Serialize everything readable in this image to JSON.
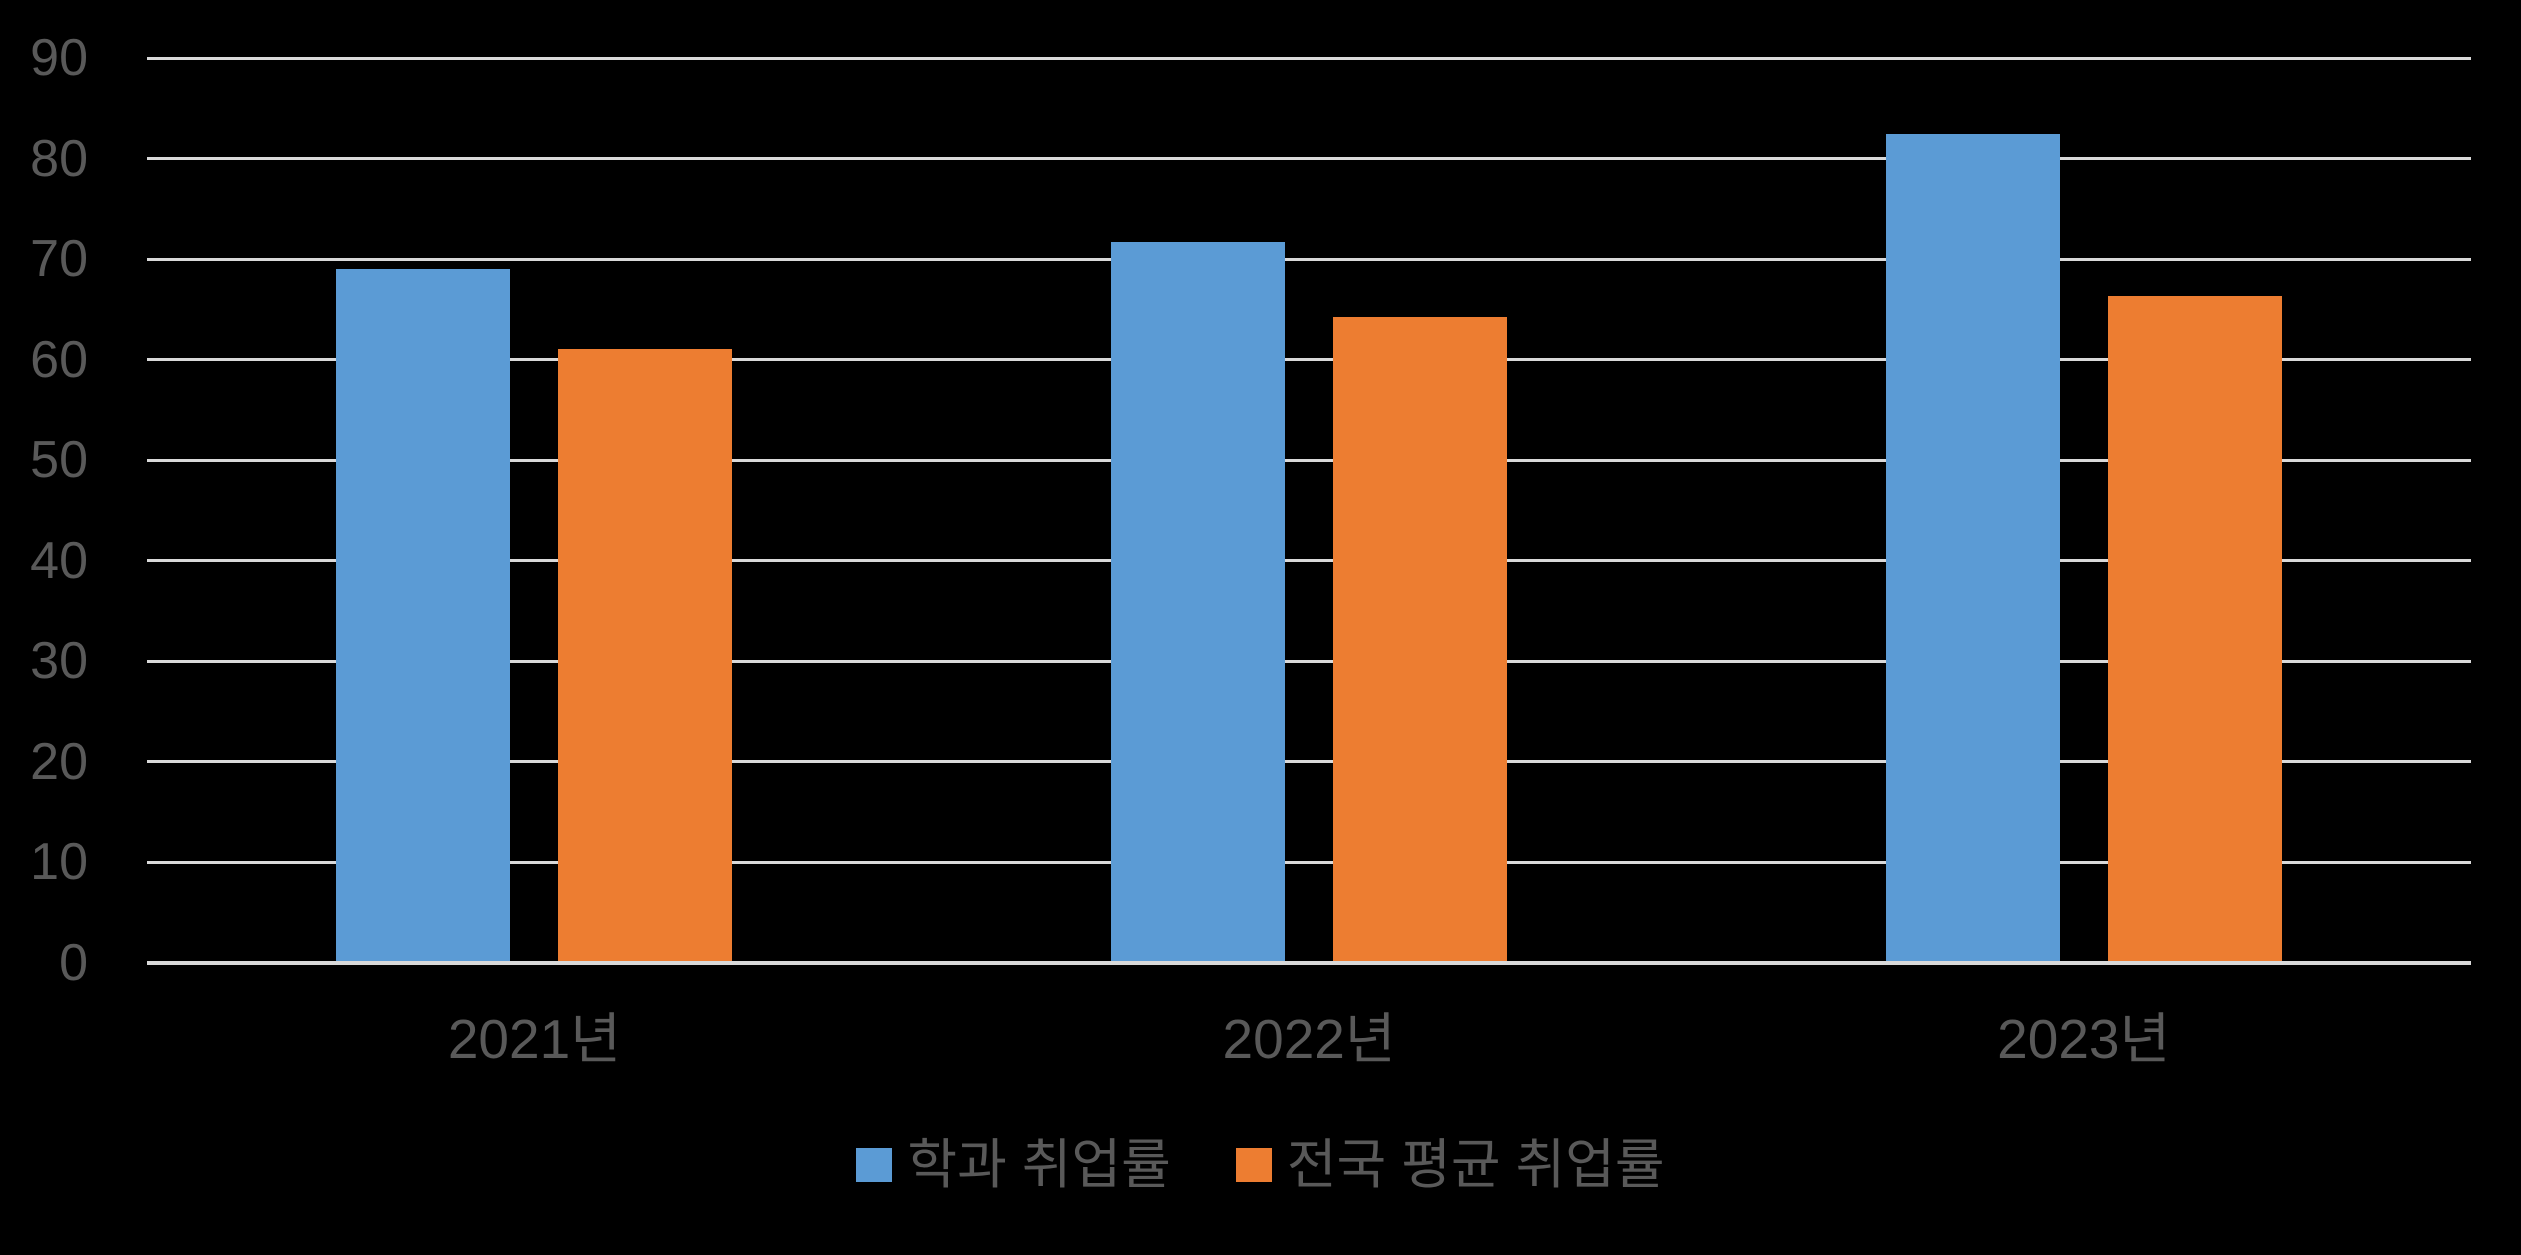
{
  "chart_data": {
    "type": "bar",
    "title": "",
    "categories": [
      "2021년",
      "2022년",
      "2023년"
    ],
    "series": [
      {
        "name": "학과 취업률",
        "color": "#5B9BD5",
        "values": [
          69,
          71.7,
          82.4
        ]
      },
      {
        "name": "전국 평균 취업률",
        "color": "#ED7D31",
        "values": [
          61.1,
          64.2,
          66.3
        ]
      }
    ],
    "y_axis": {
      "min": 0,
      "max": 90,
      "tick_step": 10,
      "tick_labels": [
        "0",
        "10",
        "20",
        "30",
        "40",
        "50",
        "60",
        "70",
        "80",
        "90"
      ]
    },
    "xlabel": "",
    "ylabel": "",
    "grid": true,
    "legend_position": "bottom",
    "colors": {
      "background": "#000000",
      "text": "#595959",
      "gridline": "#D9D9D9",
      "axis_line": "#D9D9D9"
    }
  }
}
